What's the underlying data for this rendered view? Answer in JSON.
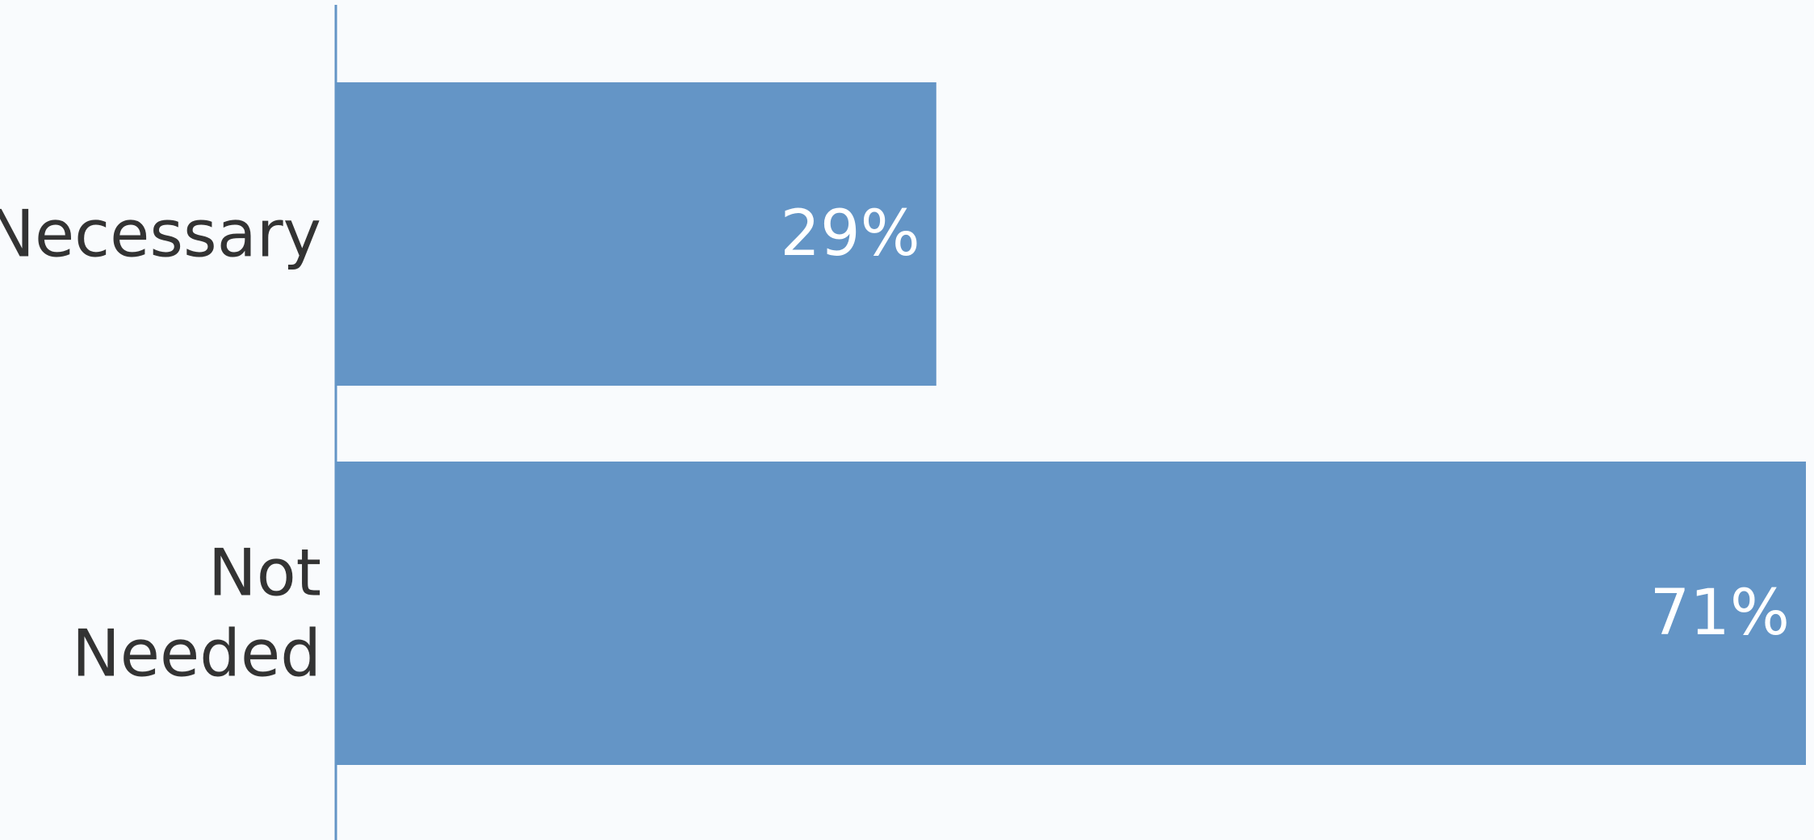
{
  "chart_data": {
    "type": "bar",
    "orientation": "horizontal",
    "categories": [
      "Necessary",
      "Not Needed"
    ],
    "category_lines": [
      [
        "Necessary"
      ],
      [
        "Not",
        "Needed"
      ]
    ],
    "values": [
      29,
      71
    ],
    "value_labels": [
      "29%",
      "71%"
    ],
    "unit": "%",
    "xlim": [
      0,
      71
    ],
    "grid": false,
    "legend": "none"
  },
  "colors": {
    "background": "#f9fbfd",
    "bar": "#6495c6",
    "axis": "#6495c6",
    "category_text": "#333333",
    "value_text": "#ffffff"
  }
}
